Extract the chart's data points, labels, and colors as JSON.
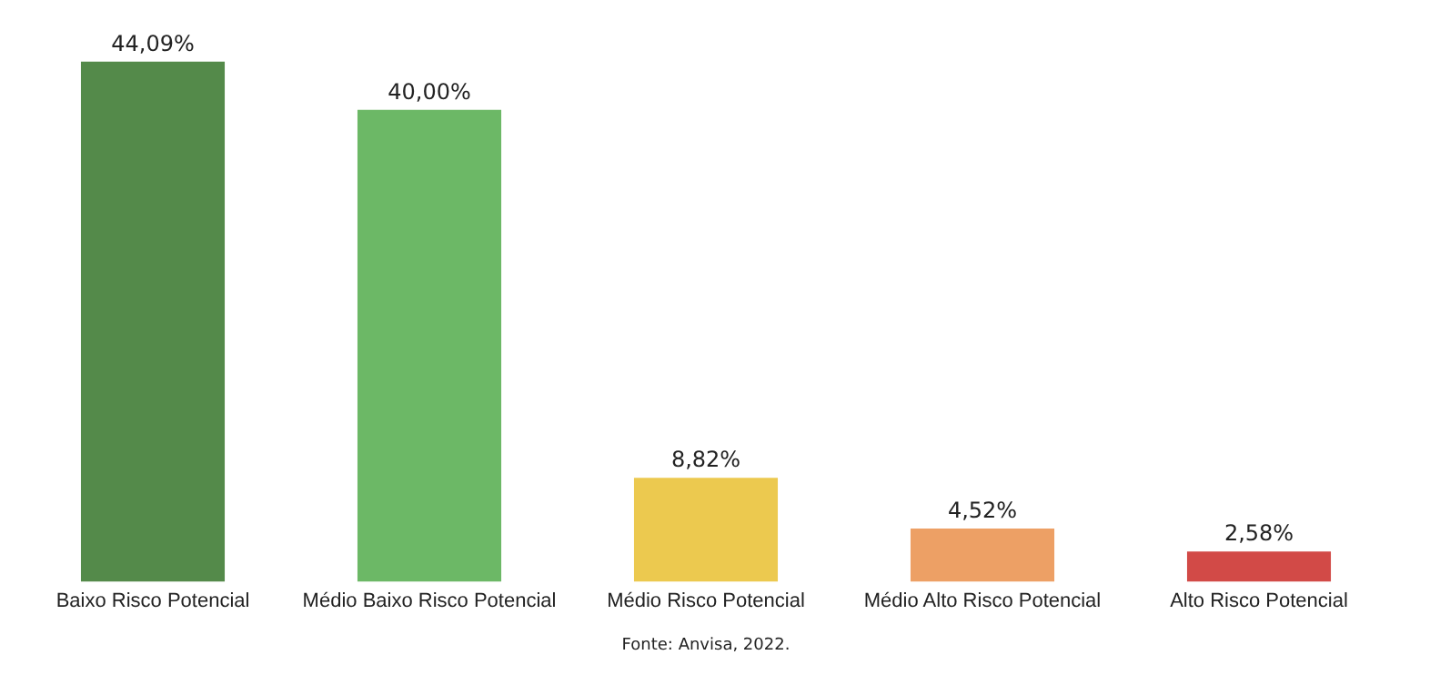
{
  "chart_data": {
    "type": "bar",
    "categories": [
      "Baixo Risco Potencial",
      "Médio Baixo Risco Potencial",
      "Médio Risco Potencial",
      "Médio Alto Risco Potencial",
      "Alto Risco Potencial"
    ],
    "values": [
      44.09,
      40.0,
      8.82,
      4.52,
      2.58
    ],
    "colors": [
      "#548a4a",
      "#6cb866",
      "#ecc94f",
      "#eda065",
      "#d24a47"
    ],
    "value_labels": [
      "44,09%",
      "40,00%",
      "8,82%",
      "4,52%",
      "2,58%"
    ],
    "annotations": [
      "Fonte: Anvisa, 2022."
    ],
    "grid": false,
    "legend": false
  }
}
